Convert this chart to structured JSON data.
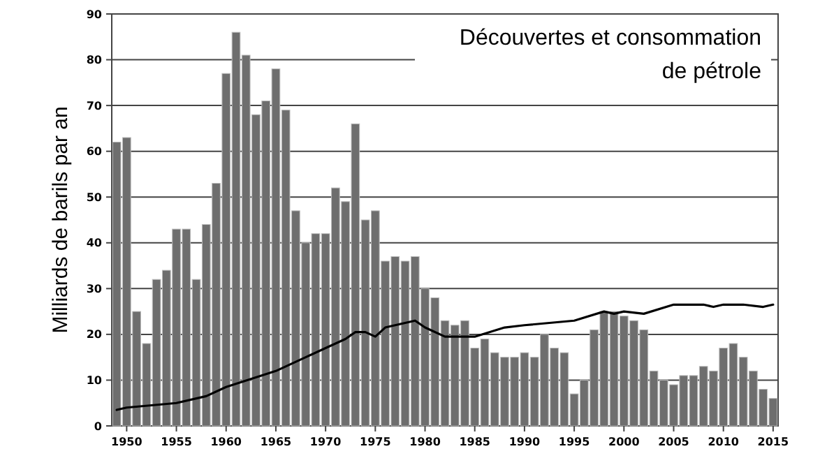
{
  "chart_data": {
    "type": "bar",
    "title": "Découvertes et consommation\nde pétrole",
    "ylabel": "Milliards de barils par an",
    "x": [
      1949,
      1950,
      1951,
      1952,
      1953,
      1954,
      1955,
      1956,
      1957,
      1958,
      1959,
      1960,
      1961,
      1962,
      1963,
      1964,
      1965,
      1966,
      1967,
      1968,
      1969,
      1970,
      1971,
      1972,
      1973,
      1974,
      1975,
      1976,
      1977,
      1978,
      1979,
      1980,
      1981,
      1982,
      1983,
      1984,
      1985,
      1986,
      1987,
      1988,
      1989,
      1990,
      1991,
      1992,
      1993,
      1994,
      1995,
      1996,
      1997,
      1998,
      1999,
      2000,
      2001,
      2002,
      2003,
      2004,
      2005,
      2006,
      2007,
      2008,
      2009,
      2010,
      2011,
      2012,
      2013,
      2014,
      2015
    ],
    "series": [
      {
        "color": "#6e6e6e",
        "values": [
          62,
          63,
          25,
          18,
          32,
          34,
          43,
          43,
          32,
          44,
          53,
          77,
          86,
          81,
          68,
          71,
          78,
          69,
          47,
          40,
          42,
          42,
          52,
          49,
          66,
          45,
          47,
          36,
          37,
          36,
          37,
          30,
          28,
          23,
          22,
          23,
          17,
          19,
          16,
          15,
          15,
          16,
          15,
          20,
          17,
          16,
          7,
          10,
          21,
          25,
          25,
          24,
          23,
          21,
          12,
          10,
          9,
          11,
          11,
          13,
          12,
          17,
          18,
          15,
          12,
          8,
          6
        ]
      },
      {
        "type": "line",
        "color": "#000000",
        "x": [
          1949,
          1950,
          1955,
          1958,
          1960,
          1965,
          1968,
          1970,
          1972,
          1973,
          1974,
          1975,
          1976,
          1979,
          1980,
          1982,
          1985,
          1988,
          1990,
          1995,
          1998,
          1999,
          2000,
          2002,
          2005,
          2008,
          2009,
          2010,
          2012,
          2014,
          2015
        ],
        "values": [
          3.5,
          4,
          5,
          6.5,
          8.5,
          12,
          15,
          17,
          19,
          20.5,
          20.5,
          19.5,
          21.5,
          23,
          21.5,
          19.5,
          19.5,
          21.5,
          22,
          23,
          25,
          24.5,
          25,
          24.5,
          26.5,
          26.5,
          26,
          26.5,
          26.5,
          26,
          26.5
        ]
      }
    ],
    "xlim": [
      1948.5,
      2015.5
    ],
    "xticks": [
      1950,
      1955,
      1960,
      1965,
      1970,
      1975,
      1980,
      1985,
      1990,
      1995,
      2000,
      2005,
      2010,
      2015
    ],
    "ylim": [
      0,
      90
    ],
    "yticks": [
      0,
      10,
      20,
      30,
      40,
      50,
      60,
      70,
      80,
      90
    ],
    "grid": "y"
  }
}
